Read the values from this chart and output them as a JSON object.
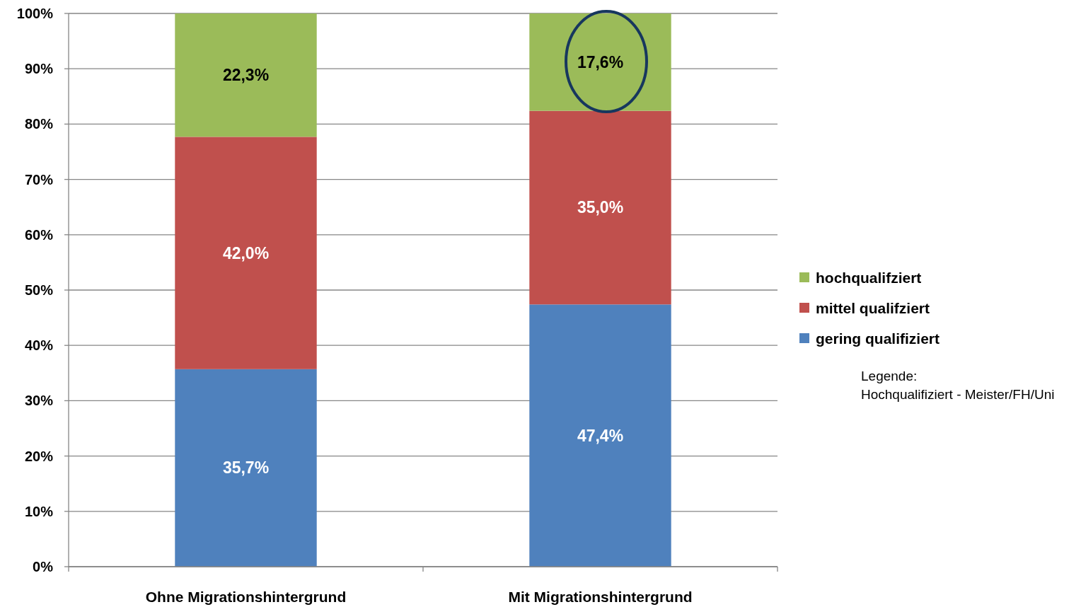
{
  "chart_data": {
    "type": "bar",
    "stacked": true,
    "categories": [
      "Ohne Migrationshintergrund",
      "Mit Migrationshintergrund"
    ],
    "series": [
      {
        "name": "gering qualifiziert",
        "color": "#4f81bd",
        "values": [
          35.7,
          47.4
        ],
        "value_labels": [
          "35,7%",
          "47,4%"
        ]
      },
      {
        "name": "mittel qualifziert",
        "color": "#c0504d",
        "values": [
          42.0,
          35.0
        ],
        "value_labels": [
          "42,0%",
          "35,0%"
        ]
      },
      {
        "name": "hochqualifziert",
        "color": "#9bbb59",
        "values": [
          22.3,
          17.6
        ],
        "value_labels": [
          "22,3%",
          "17,6%"
        ]
      }
    ],
    "ylim": [
      0,
      100
    ],
    "yticks": [
      {
        "value": 0,
        "label": "0%"
      },
      {
        "value": 10,
        "label": "10%"
      },
      {
        "value": 20,
        "label": "20%"
      },
      {
        "value": 30,
        "label": "30%"
      },
      {
        "value": 40,
        "label": "40%"
      },
      {
        "value": 50,
        "label": "50%"
      },
      {
        "value": 60,
        "label": "60%"
      },
      {
        "value": 70,
        "label": "70%"
      },
      {
        "value": 80,
        "label": "80%"
      },
      {
        "value": 90,
        "label": "90%"
      },
      {
        "value": 100,
        "label": "100%"
      }
    ],
    "grid": "y",
    "legend": "right",
    "annotations": [
      "Legende:",
      "Hochqualifiziert - Meister/FH/Uni"
    ]
  }
}
